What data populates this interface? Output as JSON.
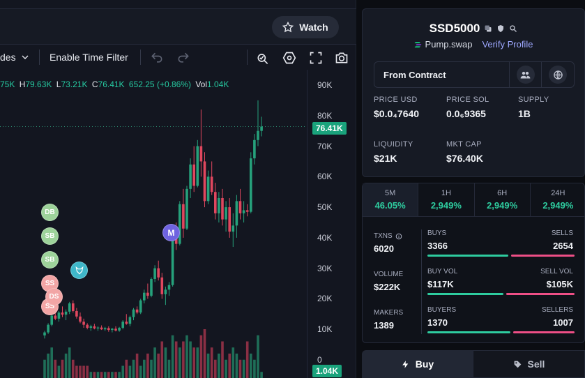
{
  "header": {
    "watch_label": "Watch"
  },
  "toolbar": {
    "trades_label": "des",
    "time_filter_label": "Enable Time Filter",
    "icons": [
      "chevron-down-icon",
      "undo-icon",
      "redo-icon",
      "indicator-icon",
      "settings-hex-icon",
      "fullscreen-icon",
      "camera-icon"
    ]
  },
  "ohlc": {
    "o_val": "75K",
    "h_label": "H",
    "h_val": "79.63K",
    "l_label": "L",
    "l_val": "73.21K",
    "c_label": "C",
    "c_val": "76.41K",
    "change": "652.25 (+0.86%)",
    "vol_label": "Vol",
    "vol_val": "1.04K"
  },
  "price_axis": {
    "ticks": [
      "90K",
      "80K",
      "70K",
      "60K",
      "50K",
      "40K",
      "30K",
      "20K",
      "10K",
      "0"
    ],
    "current_price": "76.41K",
    "current_volume": "1.04K"
  },
  "markers": [
    {
      "label": "DB",
      "kind": "green"
    },
    {
      "label": "SB",
      "kind": "green"
    },
    {
      "label": "SB",
      "kind": "green"
    },
    {
      "label": "SS",
      "kind": "red"
    },
    {
      "label": "DS",
      "kind": "red"
    },
    {
      "label": "SS",
      "kind": "red"
    },
    {
      "label": "M",
      "kind": "purple"
    },
    {
      "label": "",
      "kind": "logo"
    }
  ],
  "chart_data": {
    "type": "candlestick",
    "ylim": [
      0,
      90000
    ],
    "candles": [
      [
        8000,
        9500,
        7000,
        9000
      ],
      [
        9000,
        12000,
        8500,
        11500
      ],
      [
        11500,
        15000,
        11000,
        14500
      ],
      [
        14500,
        17000,
        13000,
        13500
      ],
      [
        13500,
        16000,
        12500,
        15500
      ],
      [
        15500,
        17500,
        14000,
        14800
      ],
      [
        14800,
        16500,
        13000,
        15800
      ],
      [
        15800,
        19000,
        15000,
        18500
      ],
      [
        18500,
        19500,
        15500,
        16000
      ],
      [
        16000,
        17000,
        13500,
        14200
      ],
      [
        14200,
        15500,
        12000,
        12500
      ],
      [
        12500,
        13500,
        10500,
        11500
      ],
      [
        11500,
        12000,
        10000,
        10500
      ],
      [
        10500,
        11500,
        9500,
        11000
      ],
      [
        11000,
        11800,
        10000,
        10300
      ],
      [
        10300,
        11000,
        9500,
        10600
      ],
      [
        10600,
        11300,
        9800,
        10000
      ],
      [
        10000,
        10800,
        9500,
        10400
      ],
      [
        10400,
        11000,
        9200,
        9800
      ],
      [
        9800,
        10500,
        9000,
        10200
      ],
      [
        10200,
        11000,
        9300,
        9600
      ],
      [
        9600,
        10800,
        9200,
        10500
      ],
      [
        10500,
        13000,
        10000,
        12500
      ],
      [
        12500,
        15000,
        11500,
        11800
      ],
      [
        11800,
        14500,
        11000,
        14000
      ],
      [
        14000,
        17000,
        13000,
        16500
      ],
      [
        16500,
        17500,
        15000,
        15500
      ],
      [
        15500,
        20000,
        15000,
        19500
      ],
      [
        19500,
        23000,
        18500,
        22000
      ],
      [
        22000,
        25000,
        20000,
        21000
      ],
      [
        21000,
        27000,
        20500,
        26500
      ],
      [
        26500,
        31000,
        25500,
        30000
      ],
      [
        30000,
        32500,
        26000,
        27000
      ],
      [
        27000,
        28500,
        20000,
        21500
      ],
      [
        21500,
        24000,
        18000,
        23000
      ],
      [
        23000,
        25500,
        21000,
        24500
      ],
      [
        24500,
        42000,
        24000,
        41000
      ],
      [
        41000,
        45000,
        36000,
        38000
      ],
      [
        38000,
        52000,
        37500,
        51000
      ],
      [
        51000,
        56000,
        40000,
        43000
      ],
      [
        43000,
        57000,
        42500,
        56000
      ],
      [
        56000,
        66000,
        53000,
        64000
      ],
      [
        64000,
        70000,
        55000,
        57000
      ],
      [
        57000,
        72000,
        56500,
        70000
      ],
      [
        70000,
        82000,
        60000,
        65000
      ],
      [
        65000,
        68000,
        50000,
        52000
      ],
      [
        52000,
        62000,
        51000,
        60000
      ],
      [
        60000,
        65000,
        54000,
        55000
      ],
      [
        55000,
        58000,
        46000,
        48000
      ],
      [
        48000,
        55000,
        45000,
        53000
      ],
      [
        53000,
        56000,
        44000,
        46000
      ],
      [
        46000,
        52000,
        42000,
        50000
      ],
      [
        50000,
        53000,
        40000,
        42000
      ],
      [
        42000,
        48000,
        37000,
        44000
      ],
      [
        44000,
        54000,
        40000,
        52000
      ],
      [
        52000,
        56000,
        46000,
        48000
      ],
      [
        48000,
        52000,
        45000,
        49000
      ],
      [
        49000,
        51000,
        47000,
        48500
      ],
      [
        48500,
        68000,
        48000,
        66000
      ],
      [
        66000,
        74000,
        64000,
        72000
      ],
      [
        72000,
        85000,
        70000,
        75000
      ],
      [
        75000,
        79630,
        73210,
        76410
      ]
    ],
    "volumes": [
      3,
      4,
      5,
      3,
      2,
      3,
      4,
      5,
      3,
      2,
      2,
      2,
      2,
      1,
      1,
      1,
      1,
      1,
      1,
      1,
      1,
      1,
      2,
      3,
      2,
      3,
      4,
      2,
      3,
      4,
      3,
      5,
      4,
      6,
      5,
      3,
      7,
      6,
      5,
      6,
      7,
      6,
      5,
      5,
      7,
      8,
      4,
      5,
      3,
      4,
      6,
      3,
      4,
      5,
      4,
      3,
      3,
      6,
      4,
      3,
      7,
      1
    ]
  },
  "token": {
    "name": "SSD5000",
    "dex": "Pump.swap",
    "verify_label": "Verify Profile",
    "from_contract_label": "From Contract",
    "stats": [
      {
        "label": "PRICE USD",
        "value": "$0.0₄7640"
      },
      {
        "label": "PRICE SOL",
        "value": "0.0₆9365"
      },
      {
        "label": "SUPPLY",
        "value": "1B"
      },
      {
        "label": "LIQUIDITY",
        "value": "$21K"
      },
      {
        "label": "MKT CAP",
        "value": "$76.40K"
      }
    ]
  },
  "periods": [
    {
      "label": "5M",
      "value": "46.05%"
    },
    {
      "label": "1H",
      "value": "2,949%"
    },
    {
      "label": "6H",
      "value": "2,949%"
    },
    {
      "label": "24H",
      "value": "2,949%"
    }
  ],
  "txns": {
    "txns_label": "TXNS",
    "txns_value": "6020",
    "volume_label": "VOLUME",
    "volume_value": "$222K",
    "makers_label": "MAKERS",
    "makers_value": "1389",
    "buys_label": "BUYS",
    "buys_value": "3366",
    "sells_label": "SELLS",
    "sells_value": "2654",
    "buyvol_label": "BUY VOL",
    "buyvol_value": "$117K",
    "sellvol_label": "SELL VOL",
    "sellvol_value": "$105K",
    "buyers_label": "BUYERS",
    "buyers_value": "1370",
    "sellers_label": "SELLERS",
    "sellers_value": "1007",
    "buys_ratio": 0.559,
    "buyvol_ratio": 0.527,
    "buyers_ratio": 0.576
  },
  "trade": {
    "buy_label": "Buy",
    "sell_label": "Sell"
  },
  "colors": {
    "up": "#26a17b",
    "down": "#e0475e",
    "accent": "#2ecc9f",
    "pink": "#ee4f86"
  }
}
